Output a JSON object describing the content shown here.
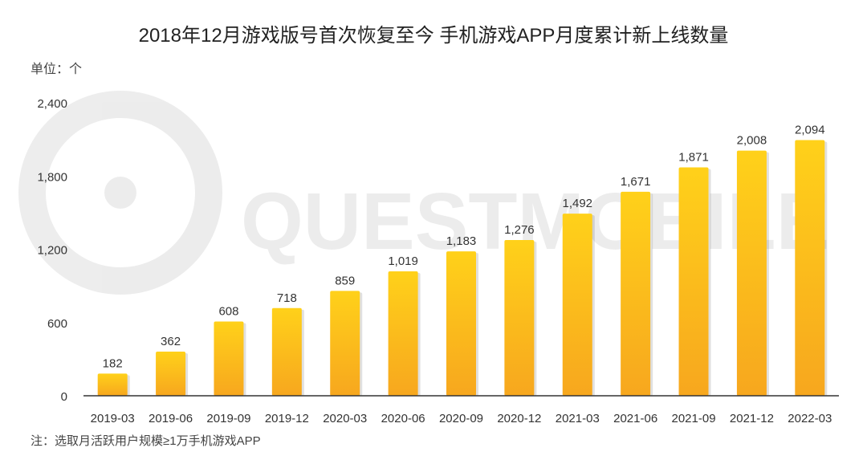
{
  "title": "2018年12月游戏版号首次恢复至今 手机游戏APP月度累计新上线数量",
  "unit_label": "单位：个",
  "note": "注：选取月活跃用户规模≥1万手机游戏APP",
  "watermark": "QUESTMOBILE",
  "colors": {
    "bar_top": "#FFD11A",
    "bar_bottom": "#F7A71E",
    "axis": "#333333",
    "text": "#333333"
  },
  "chart_data": {
    "type": "bar",
    "title": "2018年12月游戏版号首次恢复至今 手机游戏APP月度累计新上线数量",
    "xlabel": "",
    "ylabel": "单位：个",
    "ylim": [
      0,
      2400
    ],
    "yticks": [
      0,
      600,
      1200,
      1800,
      2400
    ],
    "ytick_labels": [
      "0",
      "600",
      "1,200",
      "1,800",
      "2,400"
    ],
    "grid": false,
    "categories": [
      "2019-03",
      "2019-06",
      "2019-09",
      "2019-12",
      "2020-03",
      "2020-06",
      "2020-09",
      "2020-12",
      "2021-03",
      "2021-06",
      "2021-09",
      "2021-12",
      "2022-03"
    ],
    "values": [
      182,
      362,
      608,
      718,
      859,
      1019,
      1183,
      1276,
      1492,
      1671,
      1871,
      2008,
      2094
    ],
    "value_labels": [
      "182",
      "362",
      "608",
      "718",
      "859",
      "1,019",
      "1,183",
      "1,276",
      "1,492",
      "1,671",
      "1,871",
      "2,008",
      "2,094"
    ]
  }
}
